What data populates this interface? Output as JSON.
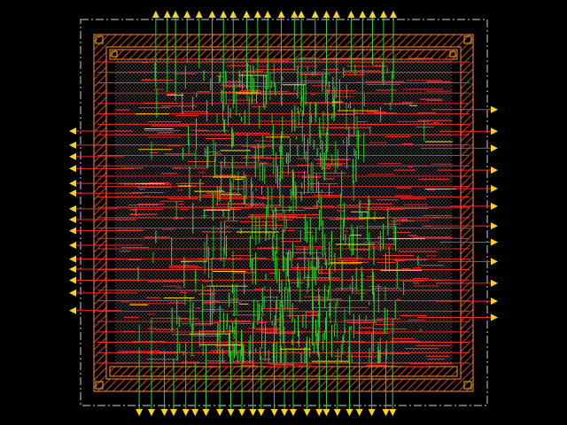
{
  "view": {
    "background": "#000000",
    "label": ""
  },
  "colors": {
    "die_outline": "#cfcfcf",
    "power_ring": "#ff8a3d",
    "ring_hatch": "#c04a10",
    "metal1_row": "#ff2a2a",
    "metal2_route": "#2fd12f",
    "metal3_route": "#ffd400",
    "pin_marker": "#ffd21f",
    "cell_dots": "#9a9a9a",
    "corner_marker": "#ffb000"
  },
  "layout": {
    "placement_rows": 30,
    "top_pin_count": 22,
    "bottom_pin_count": 24,
    "left_pin_count": 15,
    "right_pin_count": 12,
    "red_segment_count": 420,
    "green_segment_count": 520,
    "yellow_segment_count": 40,
    "seed": 1337
  }
}
